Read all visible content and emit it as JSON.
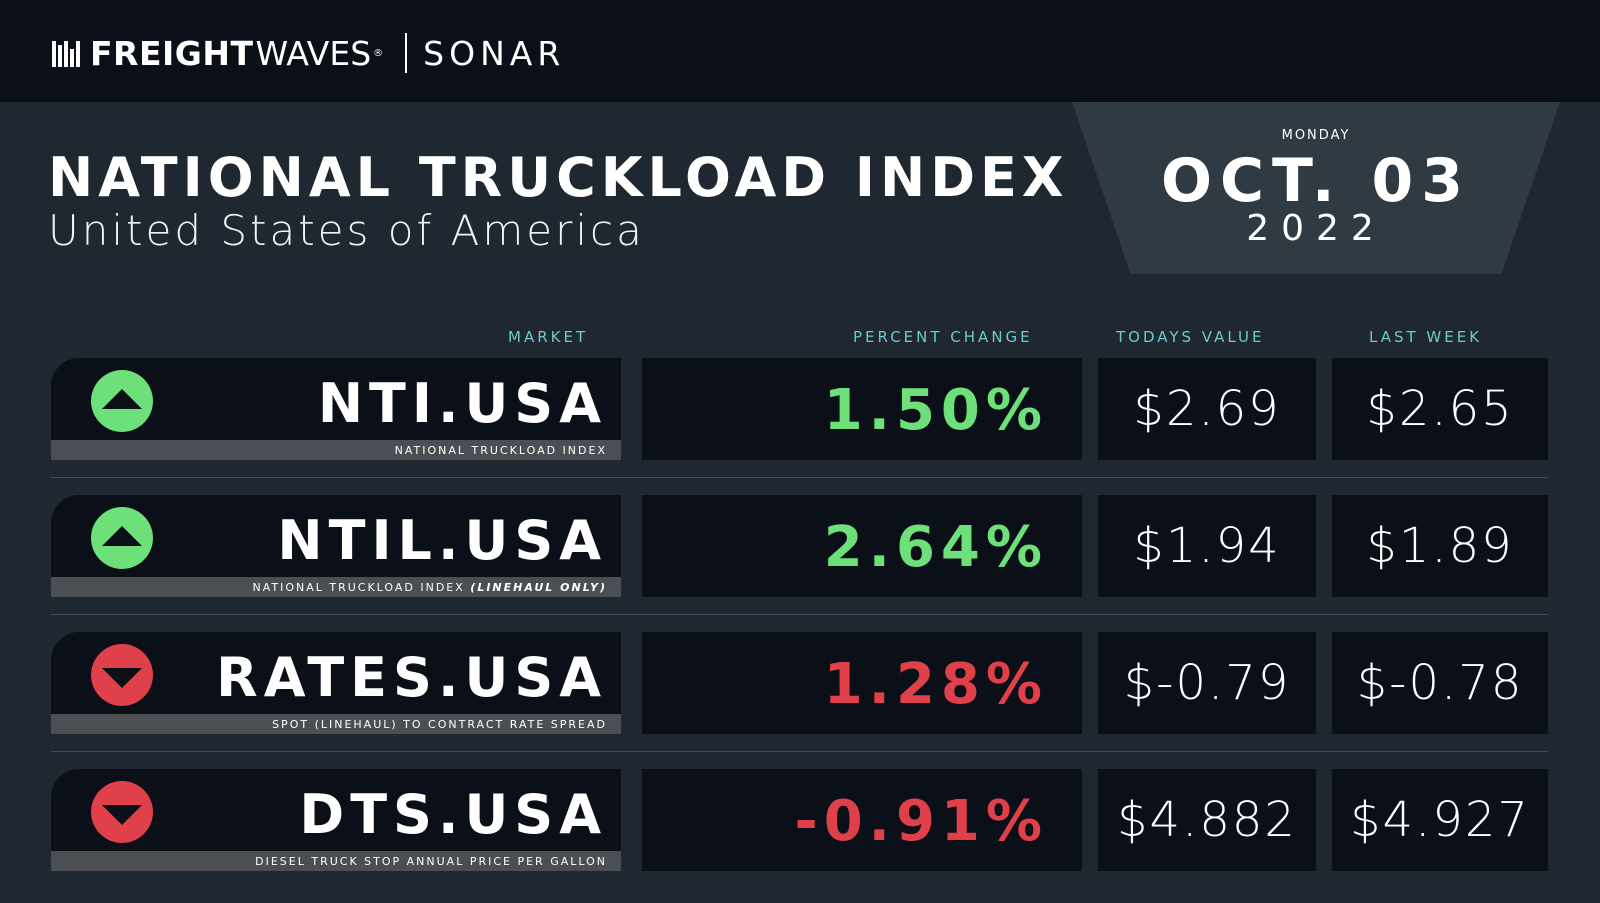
{
  "header": {
    "brand_bold": "FREIGHT",
    "brand_light": "WAVES",
    "brand_registered": "®",
    "product": "SONAR"
  },
  "title": "NATIONAL TRUCKLOAD INDEX",
  "subtitle": "United States of America",
  "date": {
    "weekday": "MONDAY",
    "month_day": "OCT. 03",
    "year": "2022"
  },
  "columns": {
    "market": "MARKET",
    "percent_change": "PERCENT CHANGE",
    "todays_value": "TODAYS VALUE",
    "last_week": "LAST WEEK"
  },
  "colors": {
    "up": "#6ee07a",
    "down": "#e0404a",
    "header_accent": "#6ec9c9",
    "background": "#1f2830",
    "panel": "#0b0f18"
  },
  "rows": [
    {
      "market": "NTI.USA",
      "description": "NATIONAL TRUCKLOAD INDEX",
      "description_emphasis": "",
      "trend": "up",
      "trend_icon": "arrow-up-icon",
      "percent_change": "1.50%",
      "todays_value": "$2.69",
      "last_week": "$2.65"
    },
    {
      "market": "NTIL.USA",
      "description": "NATIONAL TRUCKLOAD INDEX ",
      "description_emphasis": "(LINEHAUL ONLY)",
      "trend": "up",
      "trend_icon": "arrow-up-icon",
      "percent_change": "2.64%",
      "todays_value": "$1.94",
      "last_week": "$1.89"
    },
    {
      "market": "RATES.USA",
      "description": "SPOT (LINEHAUL) TO CONTRACT RATE SPREAD",
      "description_emphasis": "",
      "trend": "down",
      "trend_icon": "arrow-down-icon",
      "percent_change": "1.28%",
      "todays_value": "$-0.79",
      "last_week": "$-0.78"
    },
    {
      "market": "DTS.USA",
      "description": "DIESEL TRUCK STOP ANNUAL PRICE PER GALLON",
      "description_emphasis": "",
      "trend": "down",
      "trend_icon": "arrow-down-icon",
      "percent_change": "-0.91%",
      "todays_value": "$4.882",
      "last_week": "$4.927"
    }
  ]
}
